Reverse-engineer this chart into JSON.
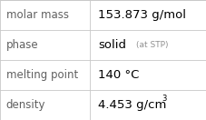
{
  "rows": [
    {
      "label": "molar mass",
      "value": "153.873 g/mol",
      "superscript": null,
      "small_text": null
    },
    {
      "label": "phase",
      "value": "solid",
      "superscript": null,
      "small_text": "(at STP)"
    },
    {
      "label": "melting point",
      "value": "140 °C",
      "superscript": null,
      "small_text": null
    },
    {
      "label": "density",
      "value": "4.453 g/cm",
      "superscript": "3",
      "small_text": null
    }
  ],
  "background_color": "#ffffff",
  "border_color": "#c8c8c8",
  "text_color": "#000000",
  "label_color": "#606060",
  "label_font_size": 8.5,
  "value_font_size": 9.5,
  "small_font_size": 6.5,
  "super_font_size": 6.0,
  "col_split": 0.435
}
